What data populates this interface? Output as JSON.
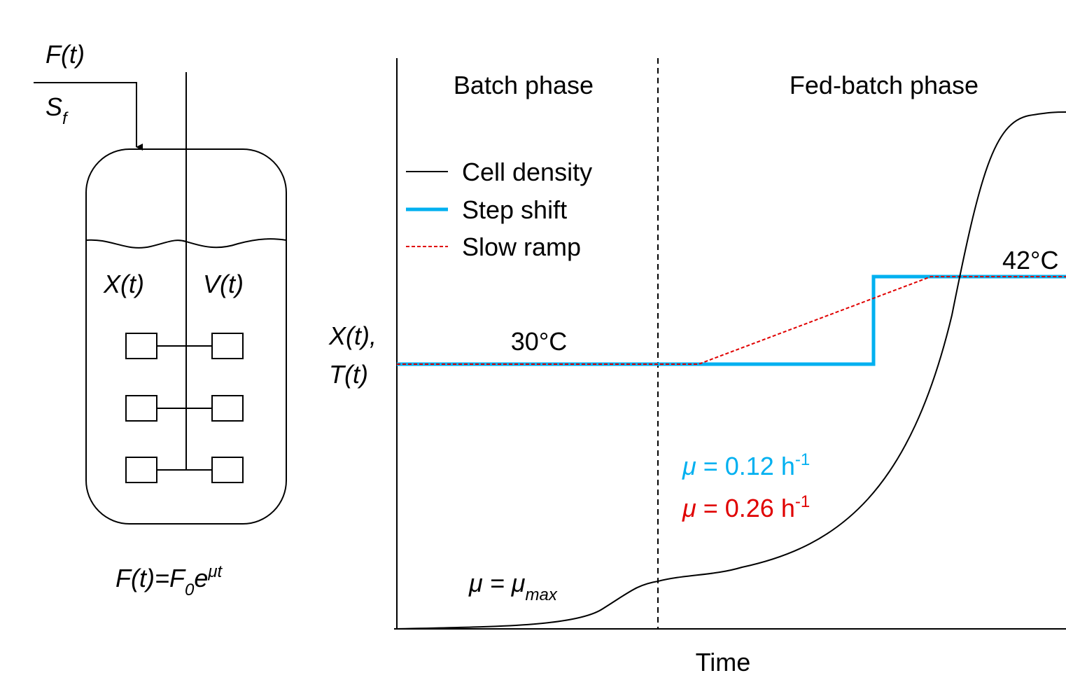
{
  "reactor": {
    "feed_label": "F(t)",
    "substrate": {
      "base": "S",
      "sub": "f"
    },
    "biomass": "X(t)",
    "volume": "V(t)",
    "feed_equation": {
      "lhs": "F(t)=F",
      "sub": "0",
      "base": "e",
      "sup": "μt"
    }
  },
  "plot": {
    "phases": [
      "Batch phase",
      "Fed-batch phase"
    ],
    "legend": [
      "Cell density",
      "Step shift",
      "Slow ramp"
    ],
    "temperatures": [
      "30°C",
      "42°C"
    ],
    "y_label": [
      "X(t),",
      "T(t)"
    ],
    "x_label": "Time",
    "growth_rates": [
      {
        "symbol": "μ",
        "text": " = 0.12 h",
        "sup": "-1"
      },
      {
        "symbol": "μ",
        "text": " = 0.26 h",
        "sup": "-1"
      }
    ],
    "batch_rate": {
      "text": "μ = μ",
      "sub": "max"
    }
  }
}
